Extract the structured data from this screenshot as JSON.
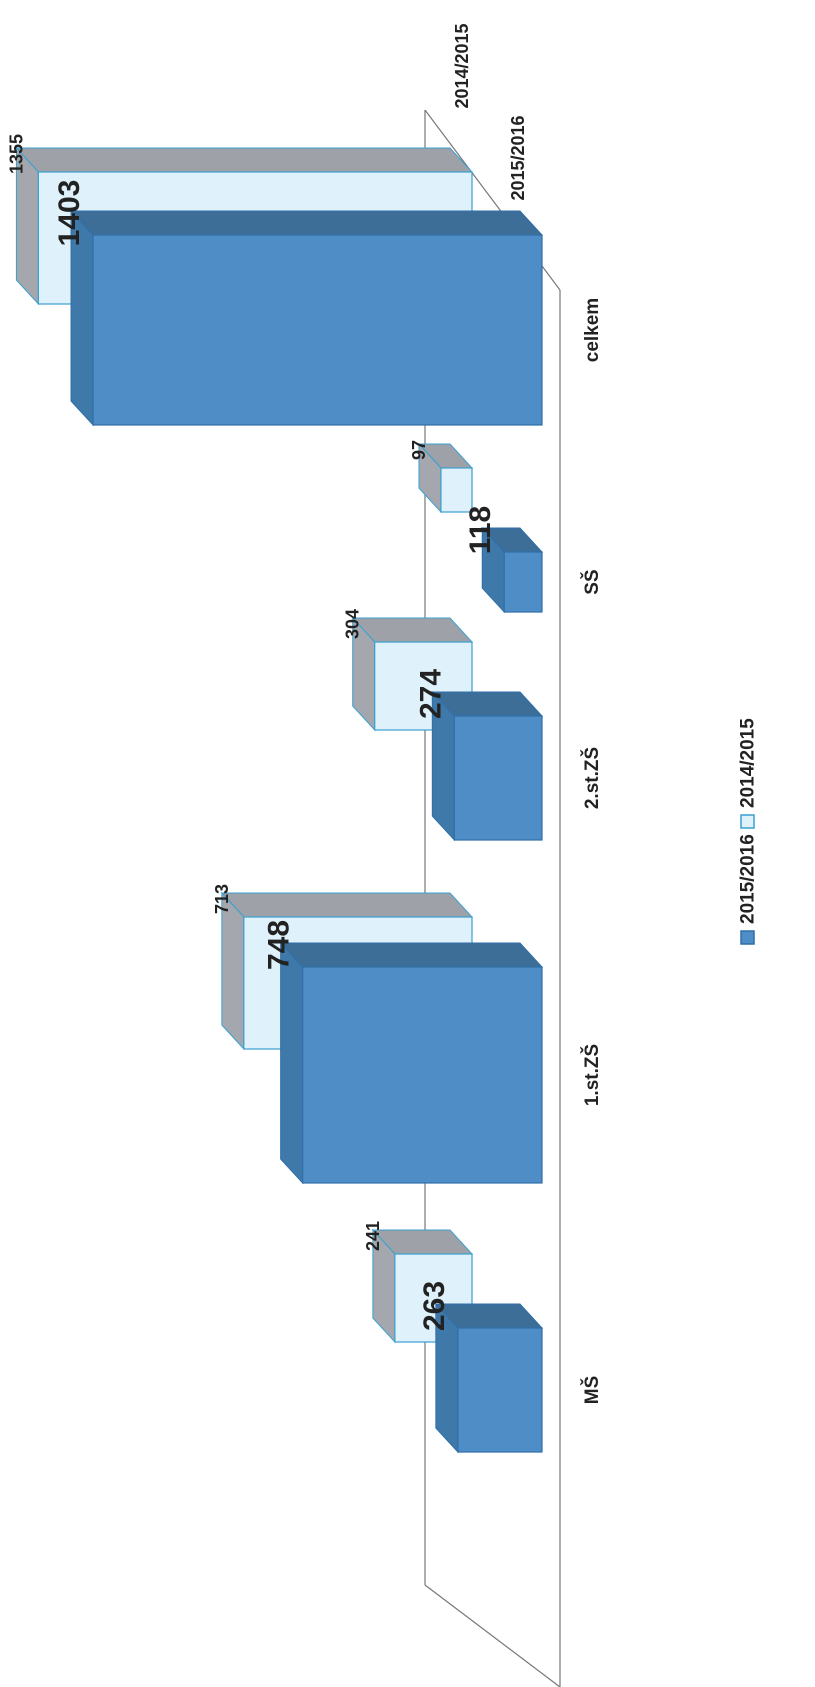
{
  "chart_data": {
    "type": "bar",
    "categories": [
      "MŠ",
      "1.st.ZŠ",
      "2.st.ZŠ",
      "SŠ",
      "celkem"
    ],
    "series": [
      {
        "name": "2015/2016",
        "values": [
          263,
          748,
          274,
          118,
          1403
        ]
      },
      {
        "name": "2014/2015",
        "values": [
          241,
          713,
          304,
          97,
          1355
        ]
      }
    ],
    "depth_labels": [
      "2015/2016",
      "2014/2015"
    ],
    "legend": [
      "2015/2016",
      "2014/2015"
    ],
    "legend_position": "bottom",
    "orientation": "rotated-90",
    "colors": {
      "2015/2016": "#4f8dc6",
      "2014/2015": "#dff1fb",
      "top_2015/2016": "#3d6e98",
      "top_2014/2015": "#9ea2a8",
      "outline_2014/2015": "#3aa0d0"
    },
    "three_d": true,
    "grid": false
  }
}
